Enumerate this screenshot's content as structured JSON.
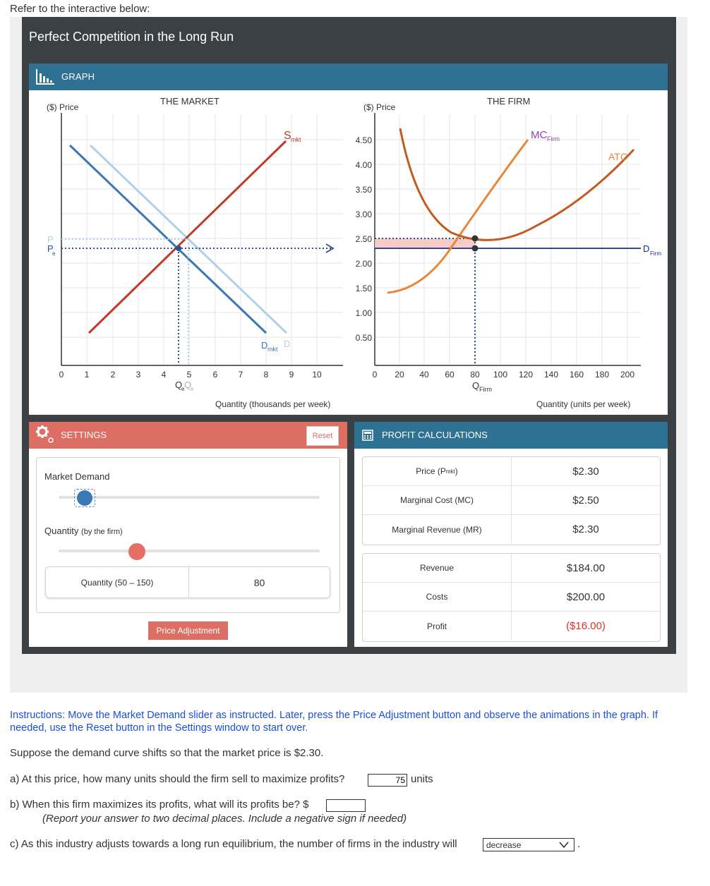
{
  "page": {
    "refer_text": "Refer to the interactive below:"
  },
  "app": {
    "title": "Perfect Competition in the Long Run"
  },
  "graph": {
    "header": "GRAPH",
    "market": {
      "title": "THE MARKET",
      "y_label": "($) Price",
      "x_label": "Quantity (thousands per week)",
      "x_ticks": [
        "0",
        "1",
        "2",
        "3",
        "4",
        "5",
        "6",
        "7",
        "8",
        "9",
        "10"
      ],
      "supply_label": "S",
      "supply_sub": "mkt",
      "demand_label": "D",
      "demand_sub": "mkt",
      "demand_ghost_label": "D",
      "price_label_e": "P",
      "price_sub_e": "e",
      "price_label_ghost": "P",
      "price_sub_ghost": "e",
      "qty_label": "Q",
      "qty_sub": "e",
      "qty_ghost_label": "Q",
      "qty_ghost_sub": "e"
    },
    "firm": {
      "title": "THE FIRM",
      "y_label": "($) Price",
      "x_label": "Quantity (units per week)",
      "y_ticks": [
        "4.50",
        "4.00",
        "3.50",
        "3.00",
        "2.50",
        "2.00",
        "1.50",
        "1.00",
        "0.50"
      ],
      "x_ticks": [
        "0",
        "20",
        "40",
        "60",
        "80",
        "100",
        "120",
        "140",
        "160",
        "180",
        "200"
      ],
      "mc_label": "MC",
      "mc_sub": "Firm",
      "atc_label": "ATC",
      "d_label": "D",
      "d_sub": "Firm",
      "q_label": "Q",
      "q_sub": "Firm"
    }
  },
  "settings": {
    "header": "SETTINGS",
    "reset": "Reset",
    "market_demand_label": "Market Demand",
    "market_demand_value": 0.1,
    "quantity_label": "Quantity",
    "quantity_label_small": "(by the firm)",
    "quantity_slider_value": 0.3,
    "quantity_box_label": "Quantity (50 – 150)",
    "quantity_value": "80",
    "price_adjustment": "Price Adjustment"
  },
  "profit": {
    "header": "PROFIT CALCULATIONS",
    "rows1": [
      {
        "label": "Price (P",
        "sub": "mkt",
        "tail": ")",
        "value": "$2.30"
      },
      {
        "label": "Marginal Cost (MC)",
        "value": "$2.50"
      },
      {
        "label": "Marginal Revenue (MR)",
        "value": "$2.30"
      }
    ],
    "rows2": [
      {
        "label": "Revenue",
        "value": "$184.00"
      },
      {
        "label": "Costs",
        "value": "$200.00"
      },
      {
        "label": "Profit",
        "value": "($16.00)"
      }
    ],
    "loss_color": "#e0332b"
  },
  "questions": {
    "instructions": "Instructions: Move the Market Demand slider as instructed.  Later, press the Price Adjustment button and observe the animations in the graph.  If needed, use the Reset button in the Settings window to start over.",
    "suppose": "Suppose the demand curve shifts so that the market price is $2.30.",
    "qa": "a) At this price, how many units should the firm sell to maximize profits?",
    "qa_answer": "75",
    "qa_units": "units",
    "qb": "b) When this firm maximizes its profits, what will its profits be? $",
    "qb_note": "(Report your answer to two decimal places.  Include a negative sign if needed)",
    "qc": "c) As this industry adjusts towards a long run equilibrium, the number of firms in the industry will",
    "qc_answer": "decrease",
    "qc_end": "."
  },
  "colors": {
    "header_blue": "#2f7193",
    "settings_red": "#dc6e64",
    "supply": "#c0392b",
    "demand": "#3a78b5",
    "demand_ghost": "#b0d0ea",
    "mc": "#e8873a",
    "atc": "#c35a1f",
    "firm_demand": "#1a2f8c",
    "mc_label": "#8e44ad"
  }
}
